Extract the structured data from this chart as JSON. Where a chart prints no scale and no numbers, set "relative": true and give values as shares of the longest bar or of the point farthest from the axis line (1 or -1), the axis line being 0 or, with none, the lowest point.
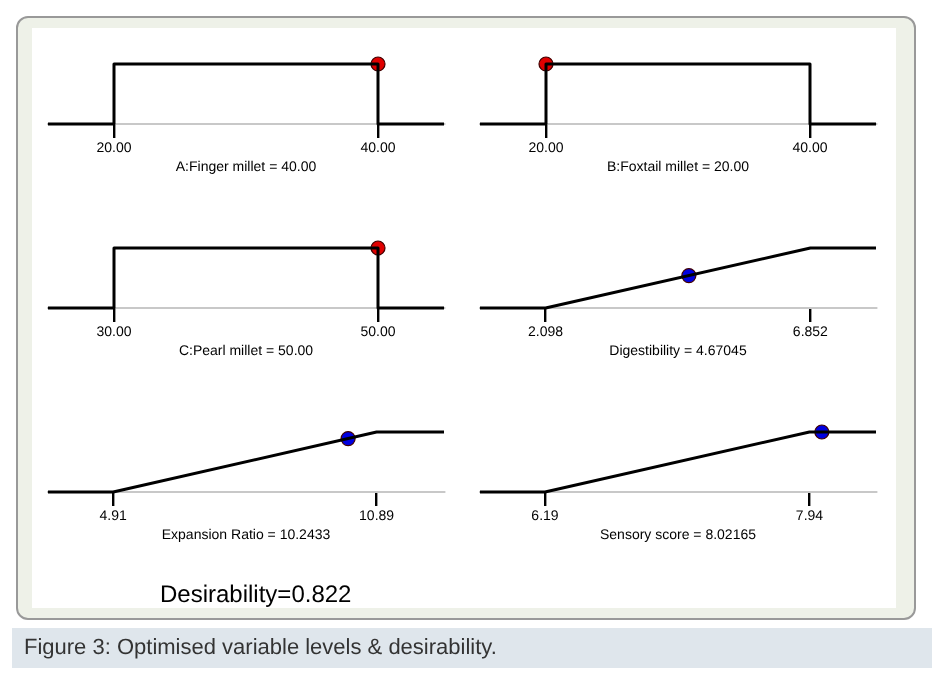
{
  "chart_data": [
    {
      "type": "line",
      "relative": true,
      "tick_labels": "x",
      "xlabel": "A:Finger millet = 40.00",
      "xlim": [
        15,
        45
      ],
      "xticks": [
        {
          "value": 20,
          "label": "20.00"
        },
        {
          "value": 40,
          "label": "40.00"
        }
      ],
      "series": [
        {
          "type": "line",
          "color": "#000000",
          "x": [
            15,
            20,
            20,
            40,
            40,
            45
          ],
          "values": [
            0,
            0,
            1,
            1,
            0,
            0
          ]
        },
        {
          "type": "scatter",
          "marker": "circle",
          "color": "#e00000",
          "x": [
            40
          ],
          "values": [
            1
          ]
        }
      ]
    },
    {
      "type": "line",
      "relative": true,
      "tick_labels": "x",
      "xlabel": "B:Foxtail millet = 20.00",
      "xlim": [
        15,
        45
      ],
      "xticks": [
        {
          "value": 20,
          "label": "20.00"
        },
        {
          "value": 40,
          "label": "40.00"
        }
      ],
      "series": [
        {
          "type": "line",
          "color": "#000000",
          "x": [
            15,
            20,
            20,
            40,
            40,
            45
          ],
          "values": [
            0,
            0,
            1,
            1,
            0,
            0
          ]
        },
        {
          "type": "scatter",
          "marker": "circle",
          "color": "#e00000",
          "x": [
            20
          ],
          "values": [
            1
          ]
        }
      ]
    },
    {
      "type": "line",
      "relative": true,
      "tick_labels": "x",
      "xlabel": "C:Pearl millet = 50.00",
      "xlim": [
        25,
        55
      ],
      "xticks": [
        {
          "value": 30,
          "label": "30.00"
        },
        {
          "value": 50,
          "label": "50.00"
        }
      ],
      "series": [
        {
          "type": "line",
          "color": "#000000",
          "x": [
            25,
            30,
            30,
            50,
            50,
            55
          ],
          "values": [
            0,
            0,
            1,
            1,
            0,
            0
          ]
        },
        {
          "type": "scatter",
          "marker": "circle",
          "color": "#e00000",
          "x": [
            50
          ],
          "values": [
            1
          ]
        }
      ]
    },
    {
      "type": "line",
      "relative": true,
      "tick_labels": "x",
      "xlabel": "Digestibility = 4.67045",
      "xlim": [
        0.92,
        8.03
      ],
      "xticks": [
        2.098,
        6.852
      ],
      "series": [
        {
          "type": "line",
          "color": "#000000",
          "x": [
            0.92,
            2.098,
            6.852,
            8.03
          ],
          "values": [
            0,
            0,
            1,
            1
          ]
        },
        {
          "type": "scatter",
          "marker": "circle",
          "color": "#0000e0",
          "x": [
            4.67045
          ],
          "values": [
            0.54
          ]
        }
      ]
    },
    {
      "type": "line",
      "relative": true,
      "tick_labels": "x",
      "xlabel": "Expansion Ratio = 10.2433",
      "xlim": [
        3.43,
        12.42
      ],
      "xticks": [
        4.91,
        10.89
      ],
      "series": [
        {
          "type": "line",
          "color": "#000000",
          "x": [
            3.43,
            4.91,
            10.89,
            12.42
          ],
          "values": [
            0,
            0,
            1,
            1
          ]
        },
        {
          "type": "scatter",
          "marker": "circle",
          "color": "#0000e0",
          "x": [
            10.2433
          ],
          "values": [
            0.89
          ]
        }
      ]
    },
    {
      "type": "line",
      "relative": true,
      "tick_labels": "x",
      "xlabel": "Sensory score = 8.02165",
      "xlim": [
        5.76,
        8.38
      ],
      "xticks": [
        6.19,
        7.94
      ],
      "series": [
        {
          "type": "line",
          "color": "#000000",
          "x": [
            5.76,
            6.19,
            7.94,
            8.38
          ],
          "values": [
            0,
            0,
            1,
            1
          ]
        },
        {
          "type": "scatter",
          "marker": "circle",
          "color": "#0000e0",
          "x": [
            8.02165
          ],
          "values": [
            1
          ]
        }
      ]
    },
    {
      "type": "other",
      "annotations": [
        "Desirability=0.822",
        "Figure 3: Optimised variable levels & desirability."
      ]
    }
  ]
}
